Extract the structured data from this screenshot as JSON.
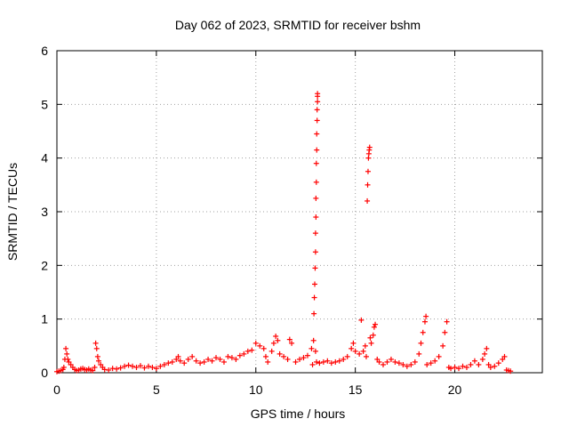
{
  "chart_data": {
    "type": "scatter",
    "title": "Day 062 of 2023, SRMTID for receiver bshm",
    "xlabel": "GPS time / hours",
    "ylabel": "SRMTID / TECUs",
    "xlim": [
      0,
      24.4
    ],
    "ylim": [
      0,
      6
    ],
    "x_ticks": [
      "0",
      "5",
      "10",
      "15",
      "20"
    ],
    "y_ticks": [
      "0",
      "1",
      "2",
      "3",
      "4",
      "5",
      "6"
    ],
    "grid": true,
    "legend": "none",
    "marker": "plus",
    "series": [
      {
        "color": "#ff0000",
        "points": [
          [
            0.0,
            0.02
          ],
          [
            0.1,
            0.03
          ],
          [
            0.2,
            0.04
          ],
          [
            0.3,
            0.06
          ],
          [
            0.35,
            0.1
          ],
          [
            0.4,
            0.25
          ],
          [
            0.45,
            0.45
          ],
          [
            0.5,
            0.35
          ],
          [
            0.55,
            0.25
          ],
          [
            0.6,
            0.2
          ],
          [
            0.7,
            0.15
          ],
          [
            0.8,
            0.1
          ],
          [
            0.9,
            0.06
          ],
          [
            1.0,
            0.04
          ],
          [
            1.1,
            0.05
          ],
          [
            1.2,
            0.07
          ],
          [
            1.3,
            0.08
          ],
          [
            1.4,
            0.06
          ],
          [
            1.5,
            0.05
          ],
          [
            1.6,
            0.07
          ],
          [
            1.7,
            0.05
          ],
          [
            1.8,
            0.04
          ],
          [
            1.9,
            0.1
          ],
          [
            1.95,
            0.55
          ],
          [
            2.0,
            0.45
          ],
          [
            2.05,
            0.3
          ],
          [
            2.1,
            0.22
          ],
          [
            2.2,
            0.15
          ],
          [
            2.3,
            0.1
          ],
          [
            2.4,
            0.06
          ],
          [
            2.6,
            0.05
          ],
          [
            2.8,
            0.08
          ],
          [
            3.0,
            0.07
          ],
          [
            3.2,
            0.09
          ],
          [
            3.4,
            0.12
          ],
          [
            3.6,
            0.14
          ],
          [
            3.8,
            0.12
          ],
          [
            4.0,
            0.1
          ],
          [
            4.2,
            0.13
          ],
          [
            4.4,
            0.09
          ],
          [
            4.6,
            0.12
          ],
          [
            4.8,
            0.1
          ],
          [
            5.0,
            0.08
          ],
          [
            5.2,
            0.12
          ],
          [
            5.4,
            0.15
          ],
          [
            5.6,
            0.18
          ],
          [
            5.8,
            0.2
          ],
          [
            6.0,
            0.25
          ],
          [
            6.1,
            0.3
          ],
          [
            6.2,
            0.22
          ],
          [
            6.4,
            0.18
          ],
          [
            6.6,
            0.25
          ],
          [
            6.8,
            0.3
          ],
          [
            7.0,
            0.22
          ],
          [
            7.2,
            0.18
          ],
          [
            7.4,
            0.2
          ],
          [
            7.6,
            0.25
          ],
          [
            7.8,
            0.22
          ],
          [
            8.0,
            0.28
          ],
          [
            8.2,
            0.25
          ],
          [
            8.4,
            0.2
          ],
          [
            8.6,
            0.3
          ],
          [
            8.8,
            0.28
          ],
          [
            9.0,
            0.25
          ],
          [
            9.2,
            0.32
          ],
          [
            9.4,
            0.35
          ],
          [
            9.6,
            0.4
          ],
          [
            9.8,
            0.42
          ],
          [
            10.0,
            0.55
          ],
          [
            10.2,
            0.5
          ],
          [
            10.4,
            0.45
          ],
          [
            10.5,
            0.3
          ],
          [
            10.6,
            0.2
          ],
          [
            10.8,
            0.4
          ],
          [
            10.9,
            0.55
          ],
          [
            11.0,
            0.68
          ],
          [
            11.1,
            0.6
          ],
          [
            11.2,
            0.35
          ],
          [
            11.4,
            0.3
          ],
          [
            11.6,
            0.25
          ],
          [
            11.7,
            0.62
          ],
          [
            11.8,
            0.55
          ],
          [
            12.0,
            0.2
          ],
          [
            12.2,
            0.25
          ],
          [
            12.4,
            0.28
          ],
          [
            12.6,
            0.32
          ],
          [
            12.8,
            0.45
          ],
          [
            12.85,
            0.15
          ],
          [
            12.9,
            0.6
          ],
          [
            12.92,
            1.1
          ],
          [
            12.94,
            1.4
          ],
          [
            12.96,
            1.65
          ],
          [
            12.98,
            1.95
          ],
          [
            13.0,
            2.25
          ],
          [
            13.0,
            2.6
          ],
          [
            13.02,
            2.9
          ],
          [
            13.02,
            3.25
          ],
          [
            13.04,
            3.55
          ],
          [
            13.04,
            3.9
          ],
          [
            13.06,
            4.15
          ],
          [
            13.06,
            4.45
          ],
          [
            13.08,
            4.7
          ],
          [
            13.08,
            4.9
          ],
          [
            13.1,
            5.05
          ],
          [
            13.1,
            5.15
          ],
          [
            13.1,
            5.2
          ],
          [
            13.0,
            0.4
          ],
          [
            13.05,
            0.2
          ],
          [
            13.2,
            0.18
          ],
          [
            13.4,
            0.2
          ],
          [
            13.6,
            0.22
          ],
          [
            13.8,
            0.18
          ],
          [
            14.0,
            0.2
          ],
          [
            14.2,
            0.22
          ],
          [
            14.4,
            0.25
          ],
          [
            14.6,
            0.3
          ],
          [
            14.8,
            0.45
          ],
          [
            14.9,
            0.55
          ],
          [
            15.0,
            0.4
          ],
          [
            15.2,
            0.35
          ],
          [
            15.3,
            0.98
          ],
          [
            15.4,
            0.4
          ],
          [
            15.5,
            0.5
          ],
          [
            15.55,
            0.3
          ],
          [
            15.6,
            3.2
          ],
          [
            15.62,
            3.5
          ],
          [
            15.64,
            3.75
          ],
          [
            15.66,
            4.0
          ],
          [
            15.68,
            4.08
          ],
          [
            15.7,
            4.15
          ],
          [
            15.72,
            4.2
          ],
          [
            15.75,
            0.65
          ],
          [
            15.8,
            0.55
          ],
          [
            15.9,
            0.7
          ],
          [
            15.95,
            0.85
          ],
          [
            16.0,
            0.9
          ],
          [
            16.1,
            0.25
          ],
          [
            16.2,
            0.2
          ],
          [
            16.4,
            0.15
          ],
          [
            16.6,
            0.2
          ],
          [
            16.8,
            0.25
          ],
          [
            17.0,
            0.2
          ],
          [
            17.2,
            0.18
          ],
          [
            17.4,
            0.15
          ],
          [
            17.6,
            0.12
          ],
          [
            17.8,
            0.15
          ],
          [
            18.0,
            0.2
          ],
          [
            18.2,
            0.35
          ],
          [
            18.3,
            0.55
          ],
          [
            18.4,
            0.75
          ],
          [
            18.5,
            0.95
          ],
          [
            18.55,
            1.05
          ],
          [
            18.6,
            0.15
          ],
          [
            18.8,
            0.18
          ],
          [
            19.0,
            0.22
          ],
          [
            19.2,
            0.3
          ],
          [
            19.4,
            0.5
          ],
          [
            19.5,
            0.75
          ],
          [
            19.6,
            0.95
          ],
          [
            19.7,
            0.1
          ],
          [
            19.8,
            0.08
          ],
          [
            20.0,
            0.1
          ],
          [
            20.2,
            0.08
          ],
          [
            20.4,
            0.12
          ],
          [
            20.6,
            0.1
          ],
          [
            20.8,
            0.15
          ],
          [
            21.0,
            0.22
          ],
          [
            21.2,
            0.15
          ],
          [
            21.4,
            0.25
          ],
          [
            21.5,
            0.35
          ],
          [
            21.6,
            0.45
          ],
          [
            21.7,
            0.15
          ],
          [
            21.8,
            0.1
          ],
          [
            22.0,
            0.12
          ],
          [
            22.2,
            0.18
          ],
          [
            22.4,
            0.25
          ],
          [
            22.5,
            0.3
          ],
          [
            22.6,
            0.05
          ],
          [
            22.7,
            0.04
          ],
          [
            22.8,
            0.03
          ]
        ]
      }
    ]
  }
}
